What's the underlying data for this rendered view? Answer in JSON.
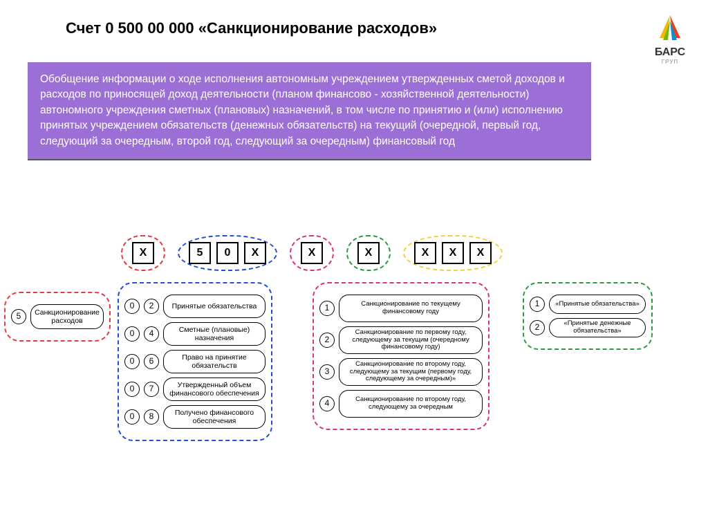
{
  "title": "Счет 0 500 00 000 «Санкционирование расходов»",
  "logo": {
    "name": "БАРС",
    "sub": "ГРУП",
    "colors": [
      "#f5b800",
      "#e8411f",
      "#7ab800",
      "#0096d6"
    ]
  },
  "purple": {
    "bg": "#9c6fd6",
    "text": "Обобщение информации о ходе исполнения автономным учреждением утвержденных сметой доходов и расходов по приносящей доход деятельности (планом финансово - хозяйственной деятельности) автономного учреждения сметных (плановых) назначений, в том числе по принятию и (или) исполнению принятых учреждением обязательств (денежных обязательств) на текущий (очередной, первый год, следующий за очередным, второй год, следующий за очередным) финансовый год"
  },
  "digits": {
    "groups": [
      {
        "color": "red",
        "cells": [
          "X"
        ]
      },
      {
        "color": "blue",
        "cells": [
          "5",
          "0",
          "X"
        ]
      },
      {
        "color": "mag",
        "cells": [
          "X"
        ]
      },
      {
        "color": "green",
        "cells": [
          "X"
        ]
      },
      {
        "color": "yell",
        "cells": [
          "X",
          "X",
          "X"
        ]
      }
    ]
  },
  "groupRed": {
    "rows": [
      {
        "codes": [
          "5"
        ],
        "label": "Санкционирование расходов"
      }
    ]
  },
  "groupBlue": {
    "rows": [
      {
        "codes": [
          "0",
          "2"
        ],
        "label": "Принятые обязательства"
      },
      {
        "codes": [
          "0",
          "4"
        ],
        "label": "Сметные (плановые) назначения"
      },
      {
        "codes": [
          "0",
          "6"
        ],
        "label": "Право на принятие обязательств"
      },
      {
        "codes": [
          "0",
          "7"
        ],
        "label": "Утвержденный объем финансового обеспечения"
      },
      {
        "codes": [
          "0",
          "8"
        ],
        "label": "Получено финансового обеспечения"
      }
    ]
  },
  "groupMag": {
    "rows": [
      {
        "codes": [
          "1"
        ],
        "label": "Санкционирование по текущему финансовому году"
      },
      {
        "codes": [
          "2"
        ],
        "label": "Санкционирование по первому году, следующему за текущим (очередному финансовому году)"
      },
      {
        "codes": [
          "3"
        ],
        "label": "Санкционирование по второму году, следующему за текущим (первому году, следующему за очередным)»"
      },
      {
        "codes": [
          "4"
        ],
        "label": "Санкционирование по второму году, следующему за очередным"
      }
    ]
  },
  "groupGreen": {
    "rows": [
      {
        "codes": [
          "1"
        ],
        "label": "«Принятые обязательства»"
      },
      {
        "codes": [
          "2"
        ],
        "label": "«Принятые денежные обязательства»"
      }
    ]
  },
  "style": {
    "digit_fontsize": 16,
    "pill_fontsize": 10.5,
    "purple_fontsize": 15.5,
    "title_fontsize": 22,
    "colors": {
      "red": "#e63946",
      "blue": "#1f4fd6",
      "mag": "#d63384",
      "green": "#2a9d3f",
      "yell": "#f4d03f"
    }
  }
}
